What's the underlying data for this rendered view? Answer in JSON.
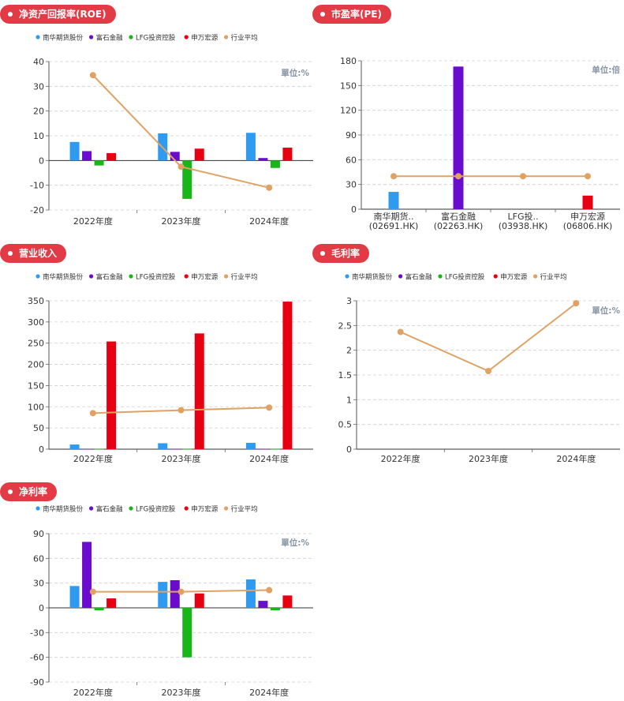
{
  "colors": {
    "tag_bg": "#e23b45",
    "nanhua": "#2e9bf0",
    "fushi": "#6a0ccc",
    "lfg": "#19b519",
    "shenwan": "#e60012",
    "industry": "#e0a264"
  },
  "legend_labels": [
    "南华期货股份",
    "富石金融",
    "LFG投资控股",
    "申万宏源",
    "行业平均"
  ],
  "charts": [
    {
      "id": "roe",
      "title": "净资产回报率(ROE)",
      "unit_label": "單位:%",
      "chart_data": {
        "type": "bar",
        "categories": [
          "2022年度",
          "2023年度",
          "2024年度"
        ],
        "ylim": [
          -20,
          40
        ],
        "yticks": [
          -20,
          -10,
          0,
          10,
          20,
          30,
          40
        ],
        "series": [
          {
            "name": "南华期货股份",
            "values": [
              7.5,
              11,
              11.2
            ]
          },
          {
            "name": "富石金融",
            "values": [
              3.8,
              3.5,
              1
            ]
          },
          {
            "name": "LFG投资控股",
            "values": [
              -2,
              -15.5,
              -3
            ]
          },
          {
            "name": "申万宏源",
            "values": [
              3,
              4.8,
              5.2
            ]
          }
        ],
        "line": {
          "name": "行业平均",
          "values": [
            34.5,
            -2.5,
            -11
          ]
        }
      }
    },
    {
      "id": "pe",
      "title": "市盈率(PE)",
      "unit_label": "单位:倍",
      "chart_data": {
        "type": "bar",
        "categories": [
          "南华期货..\n(02691.HK)",
          "富石金融\n(02263.HK)",
          "LFG投..\n(03938.HK)",
          "申万宏源\n(06806.HK)"
        ],
        "ylim": [
          0,
          180
        ],
        "yticks": [
          0,
          30,
          60,
          90,
          120,
          150,
          180
        ],
        "single_bars": [
          {
            "value": 21,
            "color_key": "nanhua"
          },
          {
            "value": 173,
            "color_key": "fushi"
          },
          {
            "value": null,
            "color_key": "lfg"
          },
          {
            "value": 16.5,
            "color_key": "shenwan"
          }
        ],
        "line": {
          "name": "行业平均",
          "values": [
            40,
            40,
            40,
            40
          ]
        }
      }
    },
    {
      "id": "revenue",
      "title": "营业收入",
      "chart_data": {
        "type": "bar",
        "categories": [
          "2022年度",
          "2023年度",
          "2024年度"
        ],
        "ylim": [
          0,
          350
        ],
        "yticks": [
          0,
          50,
          100,
          150,
          200,
          250,
          300,
          350
        ],
        "series": [
          {
            "name": "南华期货股份",
            "values": [
              11,
              14,
              15
            ]
          },
          {
            "name": "富石金融",
            "values": [
              0.3,
              0.3,
              0.3
            ]
          },
          {
            "name": "LFG投资控股",
            "values": [
              0.5,
              0.5,
              0.5
            ]
          },
          {
            "name": "申万宏源",
            "values": [
              254,
              273,
              348
            ]
          }
        ],
        "line": {
          "name": "行业平均",
          "values": [
            85,
            92,
            98
          ]
        }
      }
    },
    {
      "id": "gross",
      "title": "毛利率",
      "unit_label": "單位:%",
      "chart_data": {
        "type": "line",
        "categories": [
          "2022年度",
          "2023年度",
          "2024年度"
        ],
        "ylim": [
          0,
          3
        ],
        "yticks": [
          0,
          0.5,
          1,
          1.5,
          2,
          2.5,
          3
        ],
        "series": [],
        "line": {
          "name": "行业平均",
          "values": [
            2.37,
            1.58,
            2.95
          ]
        }
      }
    },
    {
      "id": "netmargin",
      "title": "净利率",
      "unit_label": "單位:%",
      "chart_data": {
        "type": "bar",
        "categories": [
          "2022年度",
          "2023年度",
          "2024年度"
        ],
        "ylim": [
          -90,
          90
        ],
        "yticks": [
          -90,
          -60,
          -30,
          0,
          30,
          60,
          90
        ],
        "series": [
          {
            "name": "南华期货股份",
            "values": [
              26.5,
              31.5,
              34.5
            ]
          },
          {
            "name": "富石金融",
            "values": [
              80,
              33.5,
              8.5
            ]
          },
          {
            "name": "LFG投资控股",
            "values": [
              -3,
              -60,
              -3
            ]
          },
          {
            "name": "申万宏源",
            "values": [
              11.5,
              17.5,
              15
            ]
          }
        ],
        "line": {
          "name": "行业平均",
          "values": [
            19.5,
            19.5,
            21.5
          ]
        }
      }
    }
  ]
}
